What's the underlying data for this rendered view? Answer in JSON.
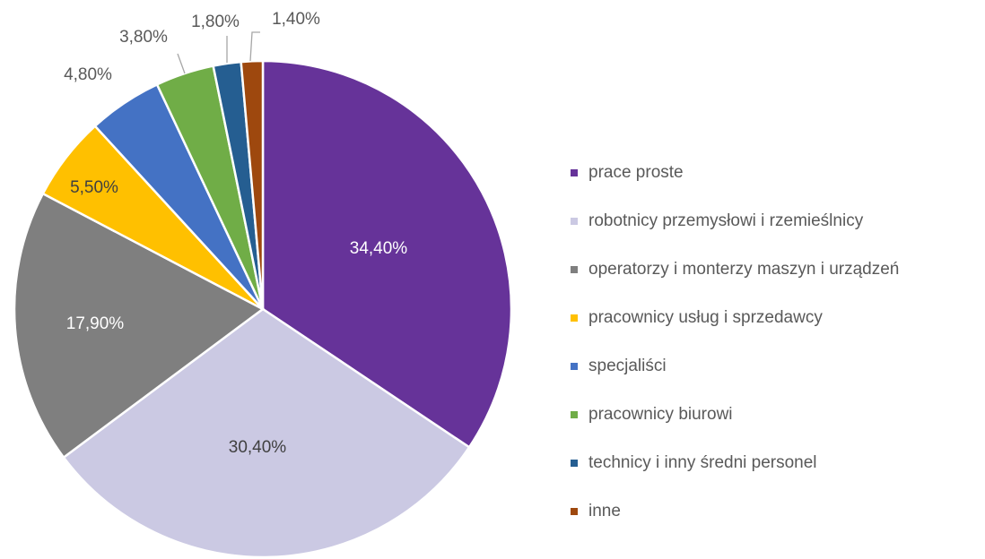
{
  "chart_data": {
    "type": "pie",
    "categories": [
      "prace proste",
      "robotnicy przemysłowi  i rzemieślnicy",
      "operatorzy i monterzy maszyn i urządzeń",
      "pracownicy usług i sprzedawcy",
      "specjaliści",
      "pracownicy biurowi",
      "technicy i inny średni personel",
      "inne"
    ],
    "values": [
      34.4,
      30.4,
      17.9,
      5.5,
      4.8,
      3.8,
      1.8,
      1.4
    ],
    "value_labels": [
      "34,40%",
      "30,40%",
      "17,90%",
      "5,50%",
      "4,80%",
      "3,80%",
      "1,80%",
      "1,40%"
    ],
    "colors": [
      "#663399",
      "#cbc9e3",
      "#7f7f7f",
      "#ffc000",
      "#4472c4",
      "#70ad47",
      "#255e91",
      "#9e480e"
    ],
    "legend": "right"
  }
}
